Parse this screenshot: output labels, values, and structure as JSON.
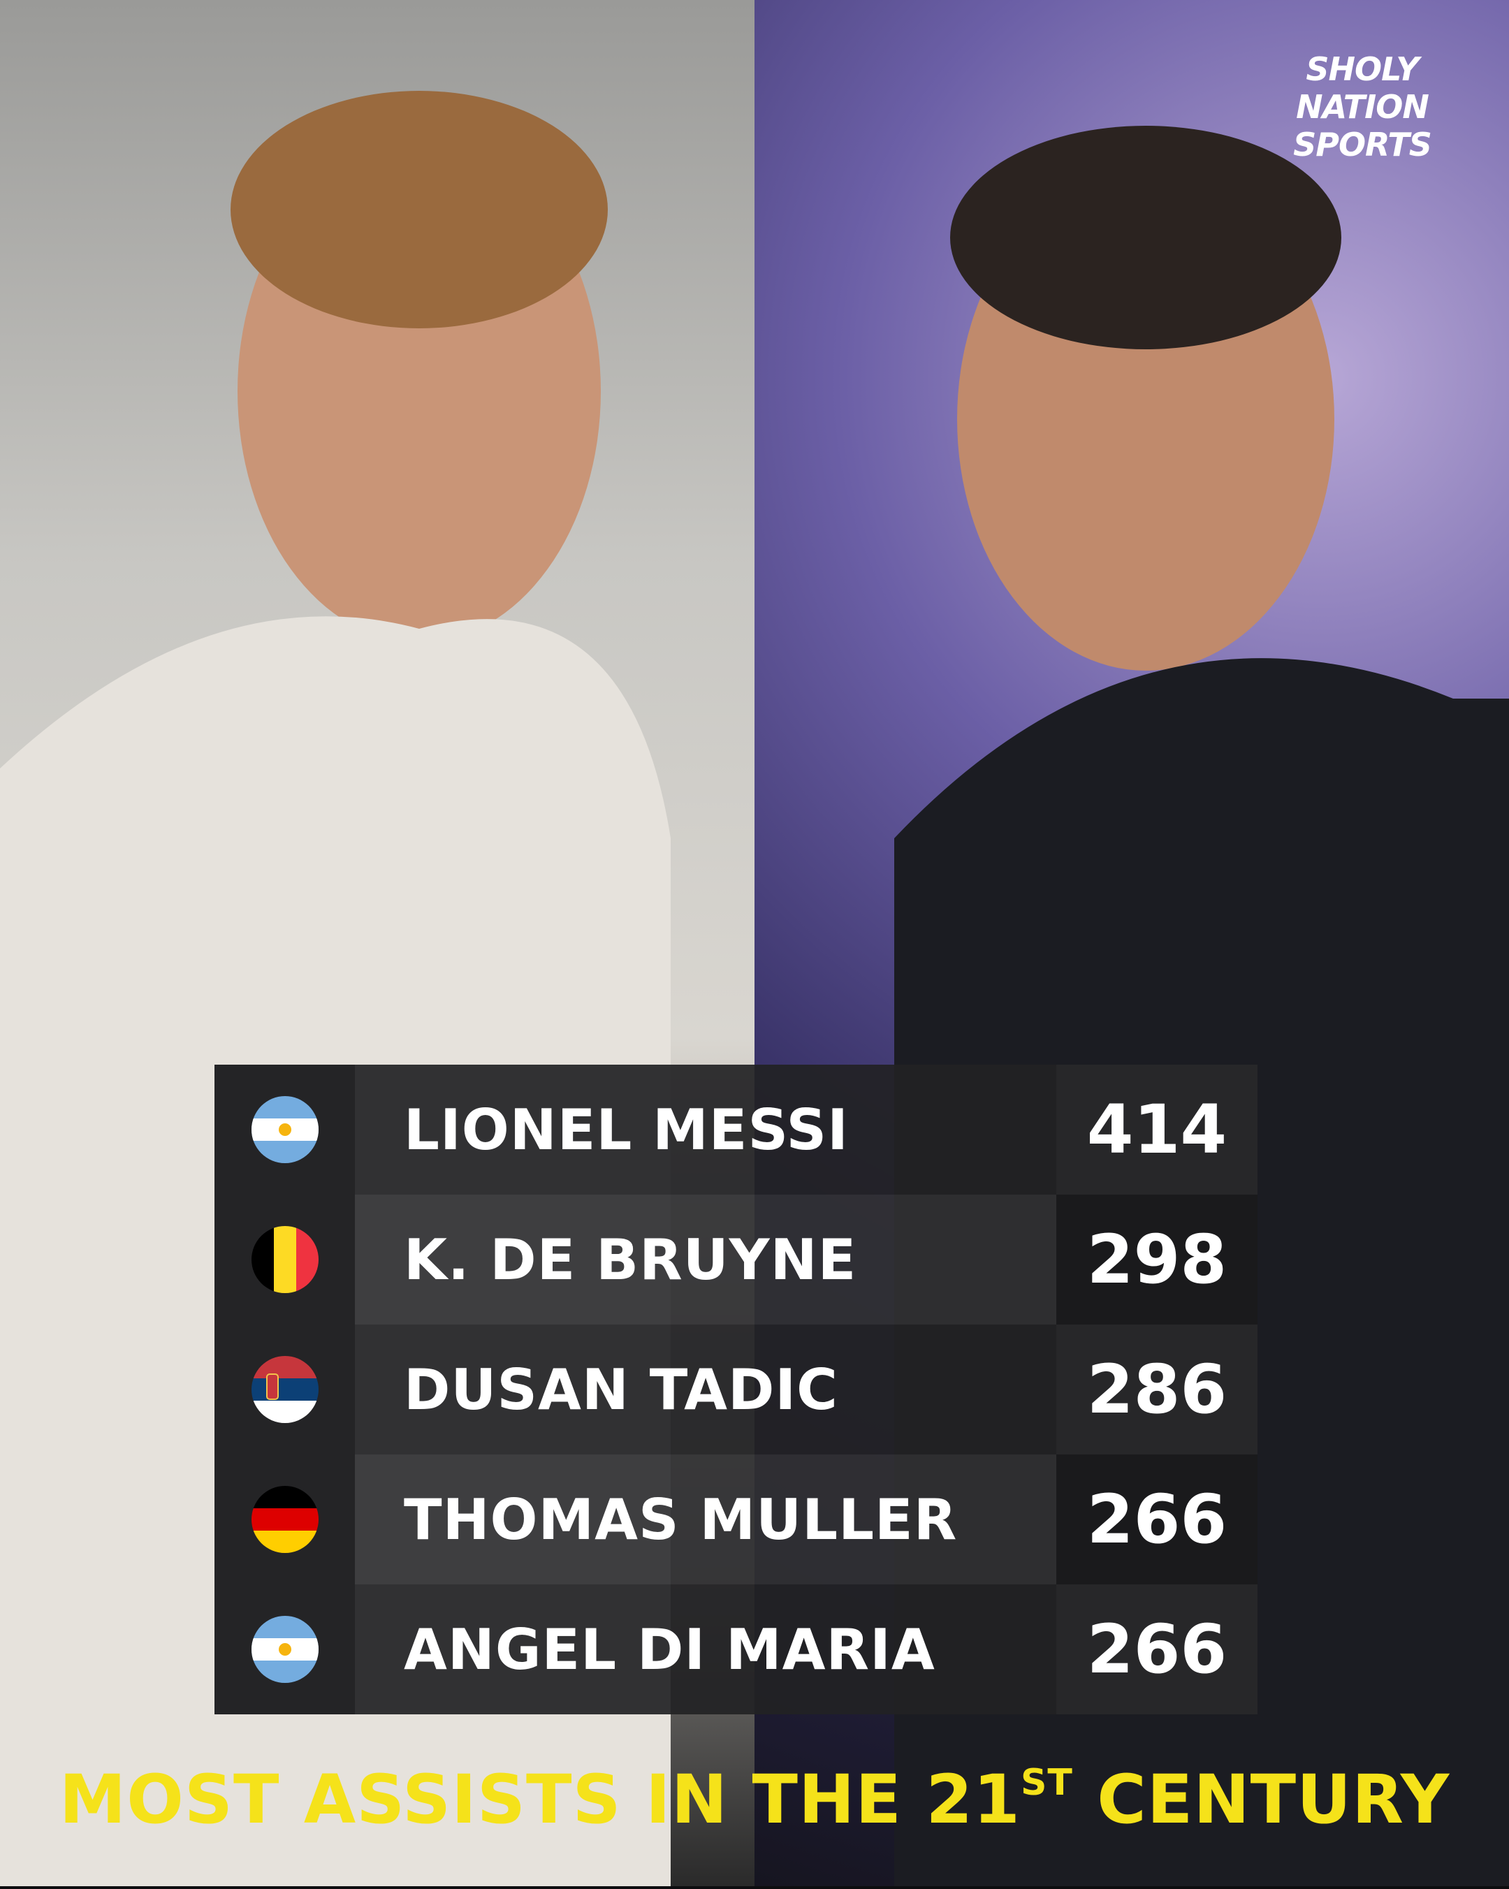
{
  "brand": [
    "SHOLY NATION",
    "SPORTS"
  ],
  "table": {
    "rows": [
      [
        "LIONEL MESSI",
        414
      ],
      [
        "K. DE BRUYNE",
        298
      ],
      [
        "DUSAN TADIC",
        286
      ],
      [
        "THOMAS MULLER",
        266
      ],
      [
        "ANGEL DI MARIA",
        266
      ]
    ]
  },
  "title": [
    "MOST ASSISTS IN THE 21",
    "ST",
    "CENTURY"
  ]
}
